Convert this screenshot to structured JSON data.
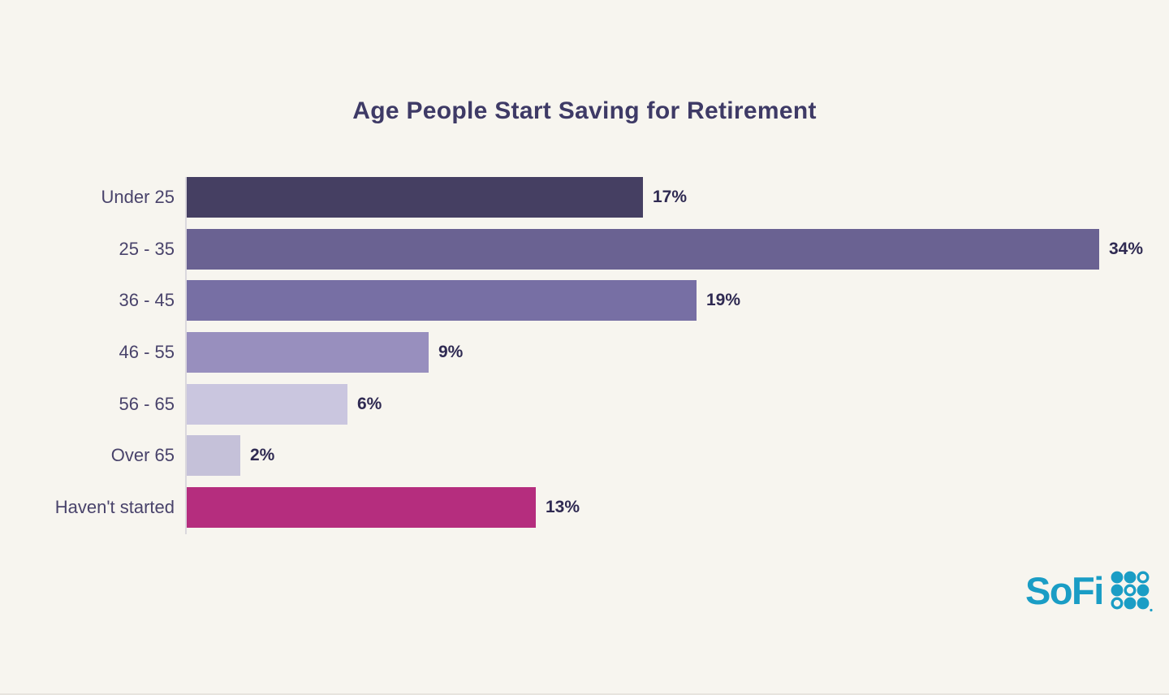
{
  "title": "Age People Start Saving for Retirement",
  "chart_data": {
    "type": "bar",
    "orientation": "horizontal",
    "title": "Age People Start Saving for Retirement",
    "categories": [
      "Under 25",
      "25 - 35",
      "36 - 45",
      "46 - 55",
      "56 - 65",
      "Over 65",
      "Haven't started"
    ],
    "values": [
      17,
      34,
      19,
      9,
      6,
      2,
      13
    ],
    "value_labels": [
      "17%",
      "34%",
      "19%",
      "9%",
      "6%",
      "2%",
      "13%"
    ],
    "bar_colors": [
      "#453f62",
      "#6a6292",
      "#776fa4",
      "#988fbe",
      "#cac6df",
      "#c5c1d9",
      "#b52d7e"
    ],
    "xlim": [
      0,
      34
    ],
    "grid": false,
    "legend": false,
    "value_label_position": "end-of-bar",
    "category_label_position": "left"
  },
  "branding": {
    "logo_text": "SoFi",
    "logo_color": "#1a9dc5",
    "logo_grid_pattern": [
      [
        "filled",
        "filled",
        "outline"
      ],
      [
        "filled",
        "outline",
        "filled"
      ],
      [
        "outline",
        "filled",
        "filled"
      ]
    ]
  },
  "colors": {
    "background": "#f7f5ef",
    "title_text": "#3e3a66",
    "category_text": "#49436b",
    "value_text": "#2f2a52",
    "axis_line": "#dbd8dd"
  }
}
